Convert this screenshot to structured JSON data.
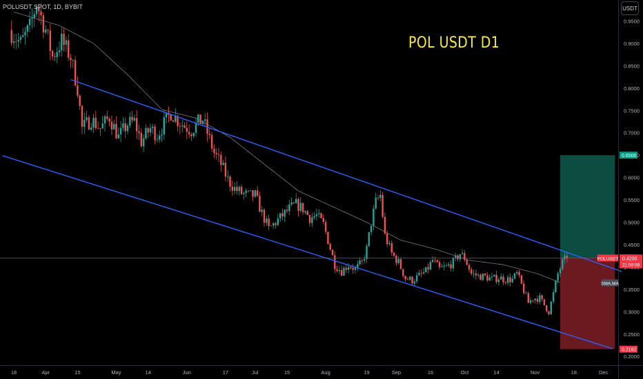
{
  "header": {
    "symbol_info": "POLUSDT SPOT, 1D, BYBIT",
    "currency_button": "USDT"
  },
  "colors": {
    "background": "#000000",
    "up_candle": "#26a69a",
    "down_candle": "#ef5350",
    "channel_line": "#2962ff",
    "sma_line": "#787b86",
    "target_zone": "#0b4d40",
    "stop_zone": "#6b1a20",
    "title": "#ffeb3b"
  },
  "chart_data": {
    "type": "candlestick",
    "title": "POL USDT D1",
    "y_axis": {
      "position": "right",
      "ylim": [
        0.188,
        0.997
      ],
      "ticks": [
        0.95,
        0.9,
        0.85,
        0.8,
        0.75,
        0.7,
        0.65,
        0.6,
        0.55,
        0.5,
        0.45,
        0.4,
        0.35,
        0.3,
        0.25,
        0.2
      ],
      "tick_labels": [
        "0.9500",
        "0.9000",
        "0.8500",
        "0.8000",
        "0.7500",
        "0.7000",
        "0.6500",
        "0.6000",
        "0.5500",
        "0.5000",
        "0.4500",
        "0.4000",
        "0.3500",
        "0.3000",
        "0.2500",
        "0.2000"
      ]
    },
    "x_axis": {
      "tick_labels": [
        "18",
        "Apr",
        "15",
        "May",
        "14",
        "Jun",
        "17",
        "Jul",
        "15",
        "Aug",
        "19",
        "Sep",
        "16",
        "Oct",
        "14",
        "Nov",
        "18",
        "Dec"
      ],
      "tick_days": [
        0,
        14,
        28,
        45,
        59,
        76,
        93,
        106,
        120,
        137,
        155,
        168,
        183,
        198,
        212,
        229,
        246,
        259
      ]
    },
    "price_labels": [
      {
        "name": "target",
        "value": "0.6500",
        "price": 0.65,
        "color": "#089981"
      },
      {
        "name": "entry",
        "value": "0.4206",
        "price": 0.4206,
        "color": "#434651"
      },
      {
        "name": "current",
        "symbol": "POLUSDT",
        "value": "0.4200",
        "countdown": "21:59:59",
        "price": 0.42,
        "color": "#f23645"
      },
      {
        "name": "sma",
        "value": "SMA,MA",
        "price": 0.3645,
        "color": "#4a4d58"
      },
      {
        "name": "stop",
        "value": "0.2162",
        "price": 0.2162,
        "color": "#f23645"
      }
    ],
    "position_tool": {
      "entry": 0.4206,
      "target": 0.65,
      "stop": 0.2162,
      "start_day": 240,
      "end_day": 264
    },
    "channel": {
      "upper": [
        {
          "day": 25,
          "price": 0.819
        },
        {
          "day": 267,
          "price": 0.39
        }
      ],
      "lower": [
        {
          "day": -5,
          "price": 0.649
        },
        {
          "day": 263,
          "price": 0.2172
        }
      ]
    },
    "sma_waypoints": [
      {
        "day": 0,
        "price": 0.97
      },
      {
        "day": 20,
        "price": 0.94
      },
      {
        "day": 35,
        "price": 0.9
      },
      {
        "day": 50,
        "price": 0.83
      },
      {
        "day": 65,
        "price": 0.752
      },
      {
        "day": 80,
        "price": 0.733
      },
      {
        "day": 95,
        "price": 0.69
      },
      {
        "day": 110,
        "price": 0.63
      },
      {
        "day": 125,
        "price": 0.57
      },
      {
        "day": 140,
        "price": 0.535
      },
      {
        "day": 155,
        "price": 0.5
      },
      {
        "day": 170,
        "price": 0.46
      },
      {
        "day": 185,
        "price": 0.44
      },
      {
        "day": 200,
        "price": 0.415
      },
      {
        "day": 215,
        "price": 0.405
      },
      {
        "day": 230,
        "price": 0.385
      },
      {
        "day": 240,
        "price": 0.365
      }
    ],
    "close_waypoints": [
      {
        "day": -2,
        "price": 0.93
      },
      {
        "day": 3,
        "price": 0.9
      },
      {
        "day": 7,
        "price": 0.935
      },
      {
        "day": 10,
        "price": 0.99
      },
      {
        "day": 14,
        "price": 0.93
      },
      {
        "day": 17,
        "price": 0.87
      },
      {
        "day": 21,
        "price": 0.905
      },
      {
        "day": 25,
        "price": 0.87
      },
      {
        "day": 28,
        "price": 0.8
      },
      {
        "day": 30,
        "price": 0.71
      },
      {
        "day": 34,
        "price": 0.73
      },
      {
        "day": 38,
        "price": 0.71
      },
      {
        "day": 42,
        "price": 0.735
      },
      {
        "day": 46,
        "price": 0.69
      },
      {
        "day": 50,
        "price": 0.72
      },
      {
        "day": 53,
        "price": 0.725
      },
      {
        "day": 56,
        "price": 0.68
      },
      {
        "day": 60,
        "price": 0.71
      },
      {
        "day": 63,
        "price": 0.695
      },
      {
        "day": 66,
        "price": 0.72
      },
      {
        "day": 69,
        "price": 0.745
      },
      {
        "day": 72,
        "price": 0.728
      },
      {
        "day": 75,
        "price": 0.715
      },
      {
        "day": 78,
        "price": 0.706
      },
      {
        "day": 81,
        "price": 0.723
      },
      {
        "day": 83,
        "price": 0.73
      },
      {
        "day": 85,
        "price": 0.7
      },
      {
        "day": 88,
        "price": 0.655
      },
      {
        "day": 91,
        "price": 0.63
      },
      {
        "day": 94,
        "price": 0.595
      },
      {
        "day": 97,
        "price": 0.575
      },
      {
        "day": 100,
        "price": 0.565
      },
      {
        "day": 103,
        "price": 0.56
      },
      {
        "day": 106,
        "price": 0.56
      },
      {
        "day": 109,
        "price": 0.52
      },
      {
        "day": 112,
        "price": 0.485
      },
      {
        "day": 115,
        "price": 0.5
      },
      {
        "day": 118,
        "price": 0.515
      },
      {
        "day": 121,
        "price": 0.53
      },
      {
        "day": 124,
        "price": 0.54
      },
      {
        "day": 127,
        "price": 0.53
      },
      {
        "day": 130,
        "price": 0.51
      },
      {
        "day": 133,
        "price": 0.515
      },
      {
        "day": 136,
        "price": 0.495
      },
      {
        "day": 138,
        "price": 0.46
      },
      {
        "day": 141,
        "price": 0.405
      },
      {
        "day": 144,
        "price": 0.39
      },
      {
        "day": 147,
        "price": 0.405
      },
      {
        "day": 150,
        "price": 0.395
      },
      {
        "day": 153,
        "price": 0.41
      },
      {
        "day": 155,
        "price": 0.44
      },
      {
        "day": 157,
        "price": 0.5
      },
      {
        "day": 159,
        "price": 0.545
      },
      {
        "day": 161,
        "price": 0.56
      },
      {
        "day": 163,
        "price": 0.47
      },
      {
        "day": 166,
        "price": 0.43
      },
      {
        "day": 169,
        "price": 0.41
      },
      {
        "day": 172,
        "price": 0.375
      },
      {
        "day": 175,
        "price": 0.37
      },
      {
        "day": 178,
        "price": 0.38
      },
      {
        "day": 181,
        "price": 0.39
      },
      {
        "day": 184,
        "price": 0.415
      },
      {
        "day": 187,
        "price": 0.395
      },
      {
        "day": 190,
        "price": 0.4
      },
      {
        "day": 193,
        "price": 0.41
      },
      {
        "day": 196,
        "price": 0.43
      },
      {
        "day": 198,
        "price": 0.42
      },
      {
        "day": 201,
        "price": 0.385
      },
      {
        "day": 204,
        "price": 0.38
      },
      {
        "day": 207,
        "price": 0.378
      },
      {
        "day": 210,
        "price": 0.373
      },
      {
        "day": 213,
        "price": 0.376
      },
      {
        "day": 216,
        "price": 0.372
      },
      {
        "day": 219,
        "price": 0.372
      },
      {
        "day": 221,
        "price": 0.385
      },
      {
        "day": 223,
        "price": 0.36
      },
      {
        "day": 226,
        "price": 0.32
      },
      {
        "day": 228,
        "price": 0.33
      },
      {
        "day": 231,
        "price": 0.33
      },
      {
        "day": 233,
        "price": 0.315
      },
      {
        "day": 235,
        "price": 0.3
      },
      {
        "day": 237,
        "price": 0.34
      },
      {
        "day": 239,
        "price": 0.385
      },
      {
        "day": 241,
        "price": 0.41
      },
      {
        "day": 243,
        "price": 0.42
      }
    ]
  }
}
